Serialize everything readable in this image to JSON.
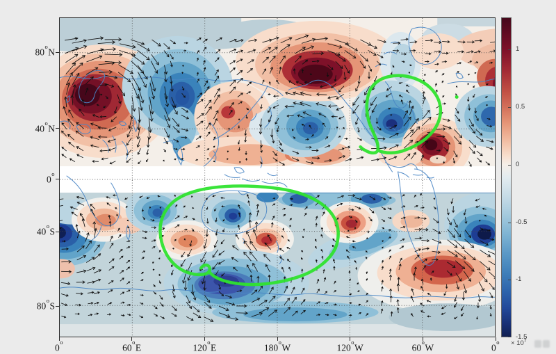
{
  "figure": {
    "background": "#ebebeb",
    "plot_background": "#f4efe9",
    "axes_color": "#2e2e2e"
  },
  "chart_data": {
    "type": "heatmap",
    "subtype": "filled-contour anomaly map with quiver vector overlay, coastlines and dotted graticule",
    "title": "",
    "x_axis": {
      "label": "",
      "ticks": [
        {
          "num": "0",
          "hemi": ""
        },
        {
          "num": "60",
          "hemi": "E"
        },
        {
          "num": "120",
          "hemi": "E"
        },
        {
          "num": "180",
          "hemi": "W"
        },
        {
          "num": "120",
          "hemi": "W"
        },
        {
          "num": "60",
          "hemi": "W"
        },
        {
          "num": "0",
          "hemi": ""
        }
      ]
    },
    "y_axis": {
      "label": "",
      "ticks": [
        {
          "num": "80",
          "hemi": "N"
        },
        {
          "num": "40",
          "hemi": "N"
        },
        {
          "num": "0",
          "hemi": ""
        },
        {
          "num": "40",
          "hemi": "S"
        },
        {
          "num": "80",
          "hemi": "S"
        }
      ]
    },
    "colorbar": {
      "tick_labels": [
        "1",
        "0.5",
        "0",
        "-0.5",
        "-1",
        "-1.5"
      ],
      "tick_values": [
        1,
        0.5,
        0,
        -0.5,
        -1,
        -1.5
      ],
      "value_min": -1.5,
      "value_max": 1.28,
      "multiplier": {
        "times": "×",
        "base": "10",
        "exponent": "7"
      },
      "colormap": "red-white-blue diverging (RdBu reversed)"
    },
    "field": {
      "positive_extreme_color": "#45081b",
      "negative_extreme_color": "#111f52",
      "masked_band": "equatorial latitudes masked white"
    },
    "annotations": [
      {
        "shape": "hand-drawn circle",
        "location": "North Atlantic, ~40-60N 50-80W",
        "color": "#2fe32f"
      },
      {
        "shape": "hand-drawn loop",
        "location": "southern Indian Ocean to SW Pacific, ~20-60S",
        "color": "#2fe32f"
      },
      {
        "shape": "dot",
        "location": "North Atlantic ~62N",
        "color": "#2fe32f"
      }
    ],
    "overlays": {
      "coastline_color": "#4a86c5",
      "vector_color": "#101010",
      "grid_style": "dotted",
      "grid_color": "#4a4a4a",
      "band_edge_color": "#2e6fae"
    }
  }
}
